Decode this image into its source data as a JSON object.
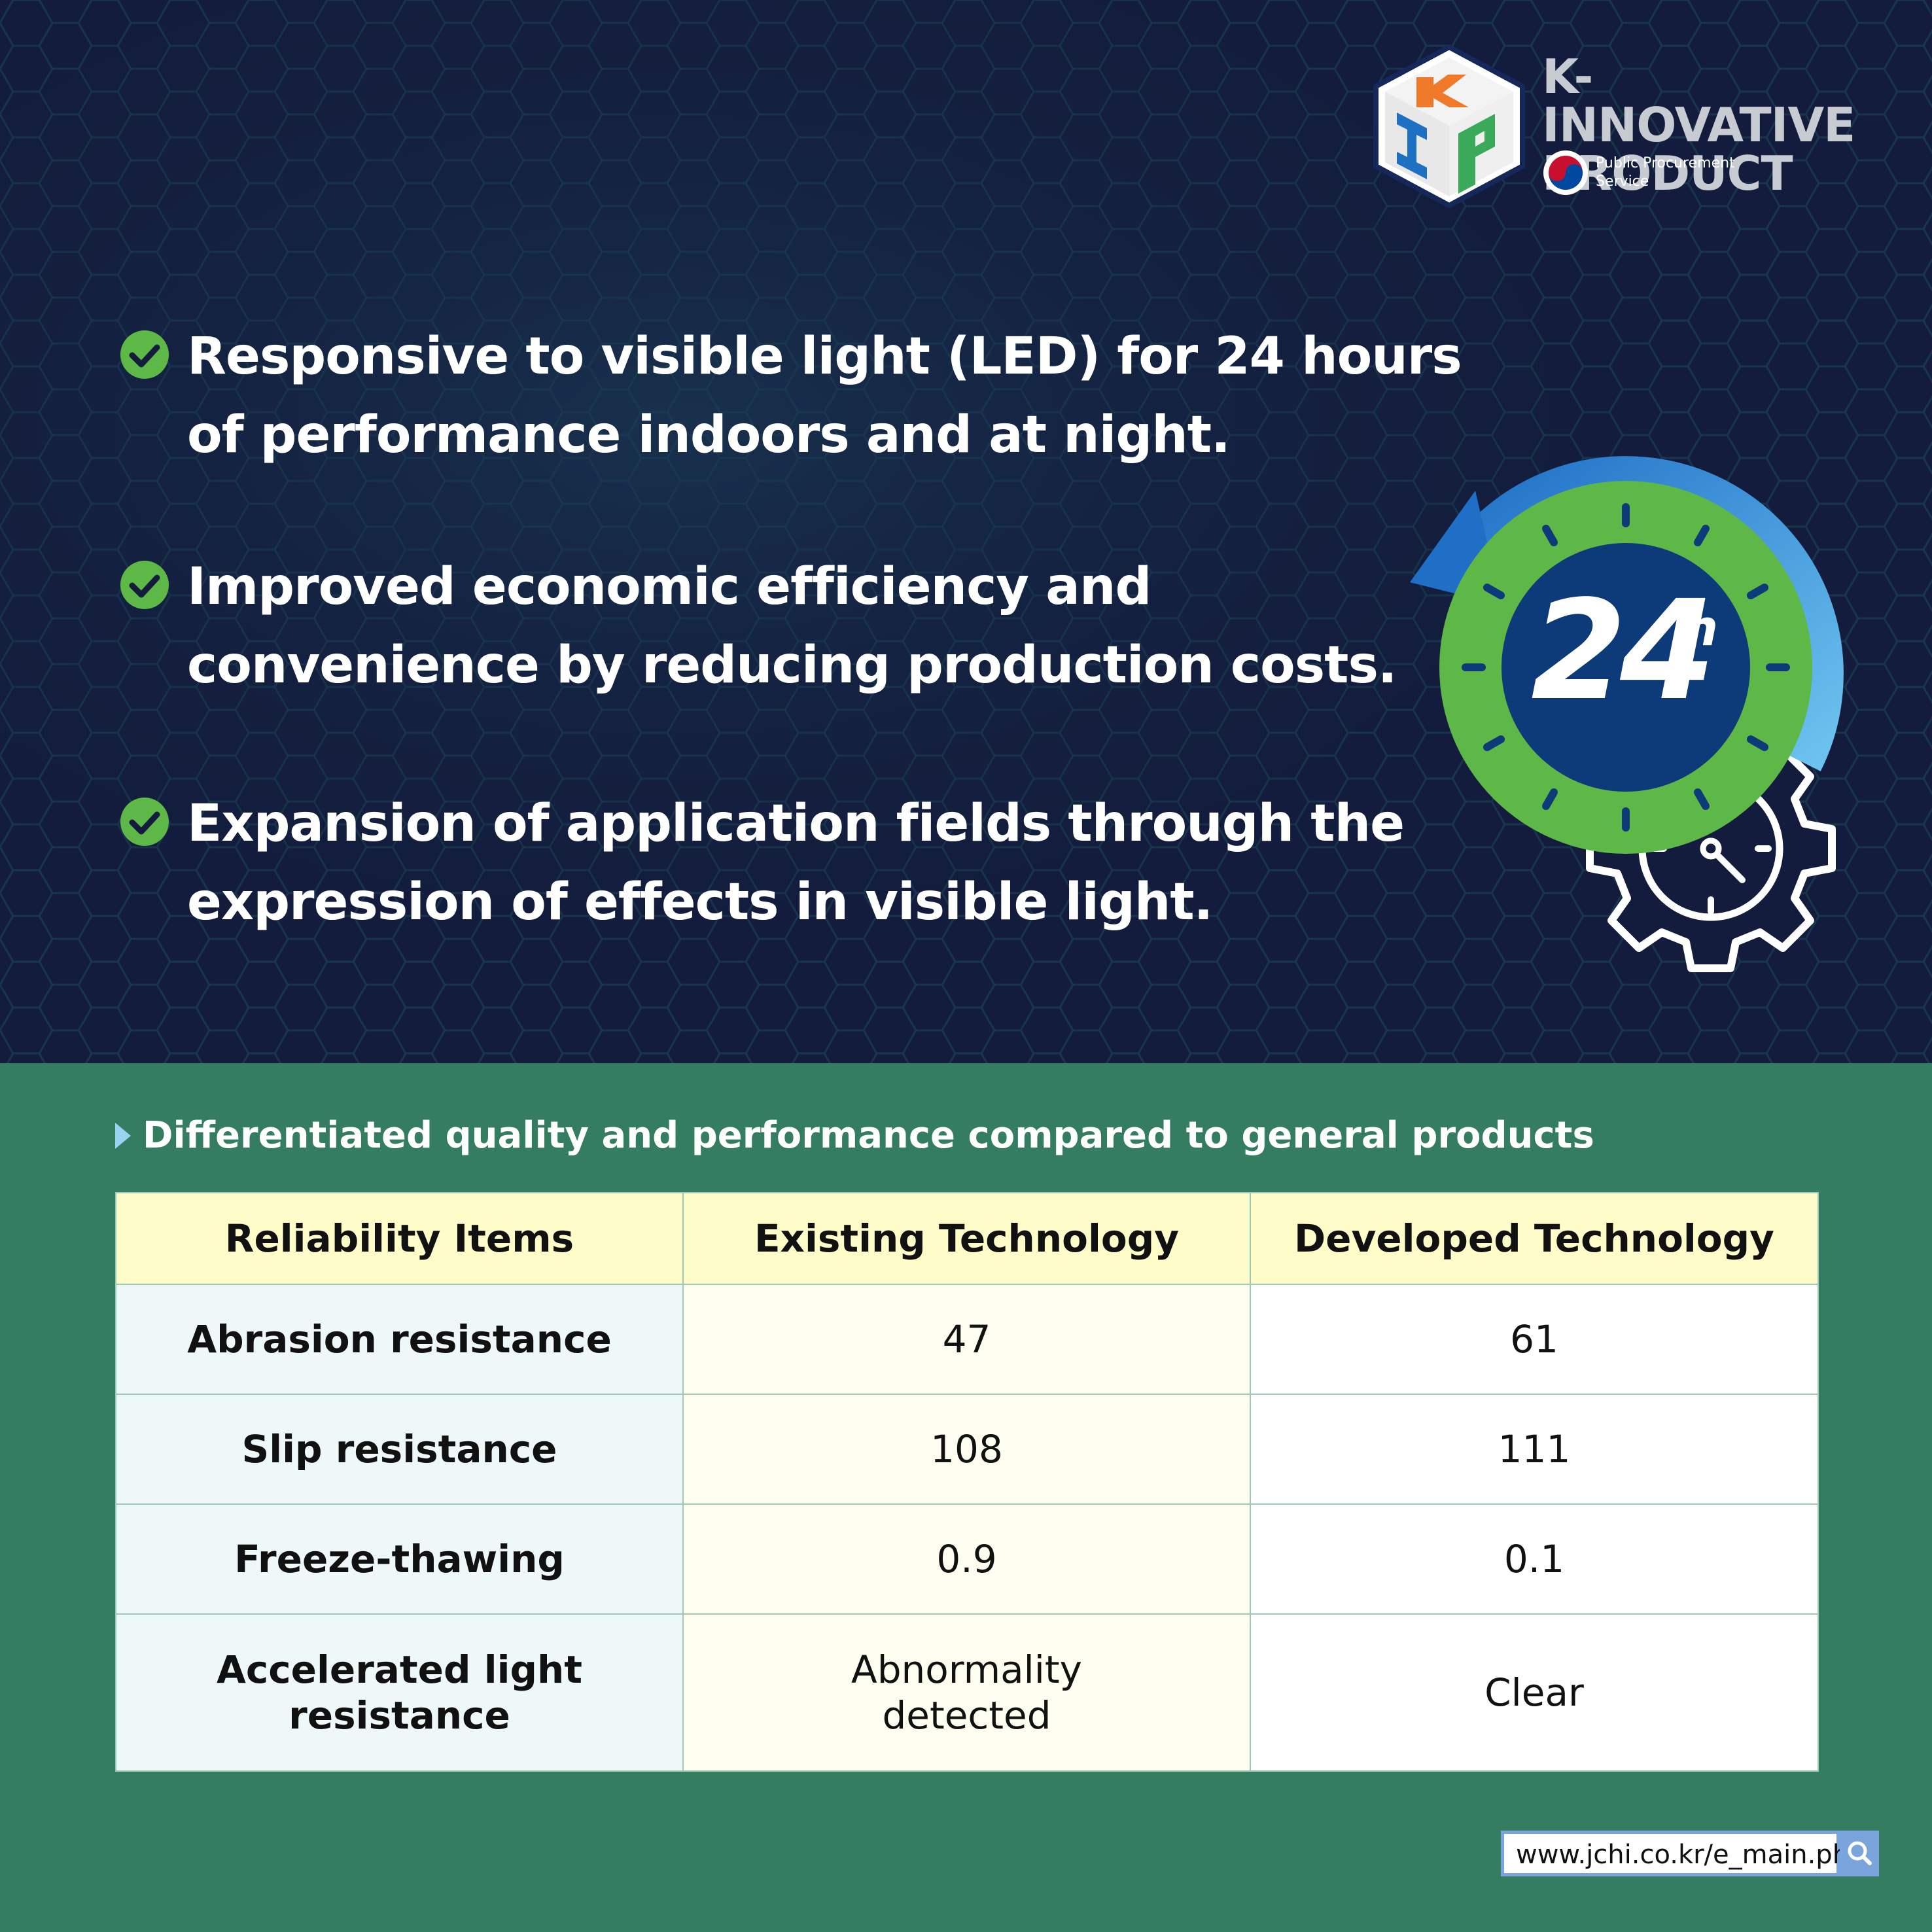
{
  "brand": {
    "logo_letters": [
      "K",
      "I",
      "P"
    ],
    "title_lines": [
      "K-INNOVATIVE",
      "PRODUCT"
    ],
    "agency_lines": [
      "Public Procurement",
      "Service"
    ]
  },
  "benefits": [
    {
      "lines": [
        "Responsive to visible light (LED) for 24 hours",
        "of performance indoors and at night."
      ]
    },
    {
      "lines": [
        "Improved economic efficiency and",
        "convenience by reducing production costs."
      ]
    },
    {
      "lines": [
        "Expansion of application fields through the",
        "expression of effects in visible light."
      ]
    }
  ],
  "badge": {
    "number": "24",
    "unit": "h"
  },
  "comparison": {
    "title": "Differentiated quality and performance compared to general products",
    "headers": [
      "Reliability Items",
      "Existing Technology",
      "Developed Technology"
    ],
    "rows": [
      {
        "item": [
          "Abrasion resistance"
        ],
        "existing": [
          "47"
        ],
        "developed": [
          "61"
        ]
      },
      {
        "item": [
          "Slip resistance"
        ],
        "existing": [
          "108"
        ],
        "developed": [
          "111"
        ]
      },
      {
        "item": [
          "Freeze-thawing"
        ],
        "existing": [
          "0.9"
        ],
        "developed": [
          "0.1"
        ]
      },
      {
        "item": [
          "Accelerated light",
          "resistance"
        ],
        "existing": [
          "Abnormality",
          "detected"
        ],
        "developed": [
          "Clear"
        ]
      }
    ]
  },
  "footer": {
    "url": "www.jchi.co.kr/e_main.php",
    "icon": "search-icon"
  },
  "colors": {
    "navy": "#131c3c",
    "green_bg": "#347d61",
    "check_green": "#5db847",
    "header_yellow": "#fefcc8",
    "clock_blue": "#0d3a78",
    "arrow_blue": "#2b8bd6"
  }
}
